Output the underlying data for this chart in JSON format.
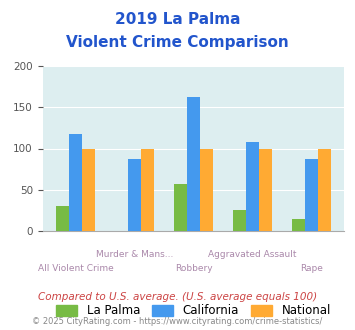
{
  "title_line1": "2019 La Palma",
  "title_line2": "Violent Crime Comparison",
  "categories": [
    "All Violent Crime",
    "Murder & Mans...",
    "Robbery",
    "Aggravated Assault",
    "Rape"
  ],
  "la_palma": [
    30,
    0,
    57,
    25,
    15
  ],
  "california": [
    118,
    87,
    162,
    108,
    87
  ],
  "national": [
    100,
    100,
    100,
    100,
    100
  ],
  "color_la_palma": "#77bb44",
  "color_california": "#4499ee",
  "color_national": "#ffaa33",
  "bg_color": "#ddeef0",
  "ylim": [
    0,
    200
  ],
  "yticks": [
    0,
    50,
    100,
    150,
    200
  ],
  "legend_labels": [
    "La Palma",
    "California",
    "National"
  ],
  "footnote1": "Compared to U.S. average. (U.S. average equals 100)",
  "footnote2": "© 2025 CityRating.com - https://www.cityrating.com/crime-statistics/",
  "title_color": "#2255cc",
  "footnote1_color": "#cc4444",
  "footnote2_color": "#888888",
  "xlabel_color": "#aa88aa"
}
